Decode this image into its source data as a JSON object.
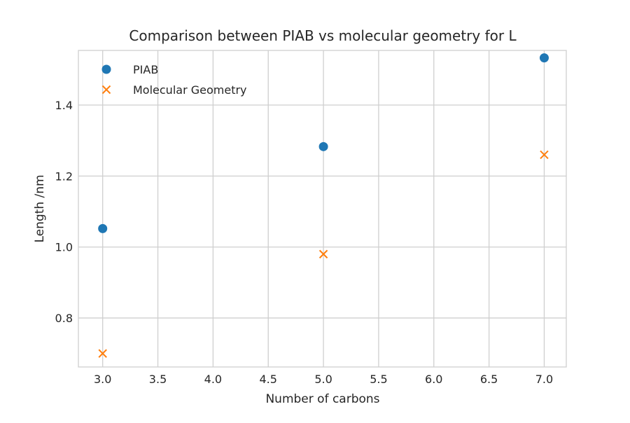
{
  "chart_data": {
    "type": "scatter",
    "title": "Comparison between PIAB vs molecular geometry for L",
    "xlabel": "Number of carbons",
    "ylabel": "Length /nm",
    "xlim": [
      2.78,
      7.2
    ],
    "ylim": [
      0.662,
      1.554
    ],
    "xticks": [
      3.0,
      3.5,
      4.0,
      4.5,
      5.0,
      5.5,
      6.0,
      6.5,
      7.0
    ],
    "xtick_labels": [
      "3.0",
      "3.5",
      "4.0",
      "4.5",
      "5.0",
      "5.5",
      "6.0",
      "6.5",
      "7.0"
    ],
    "yticks": [
      0.8,
      1.0,
      1.2,
      1.4
    ],
    "ytick_labels": [
      "0.8",
      "1.0",
      "1.2",
      "1.4"
    ],
    "grid": true,
    "legend_position": "upper-left",
    "series": [
      {
        "name": "PIAB",
        "marker": "circle",
        "color": "#1f77b4",
        "x": [
          3,
          5,
          7
        ],
        "y": [
          1.052,
          1.283,
          1.533
        ]
      },
      {
        "name": "Molecular Geometry",
        "marker": "x",
        "color": "#ff7f0e",
        "x": [
          3,
          5,
          7
        ],
        "y": [
          0.7,
          0.98,
          1.26
        ]
      }
    ]
  }
}
